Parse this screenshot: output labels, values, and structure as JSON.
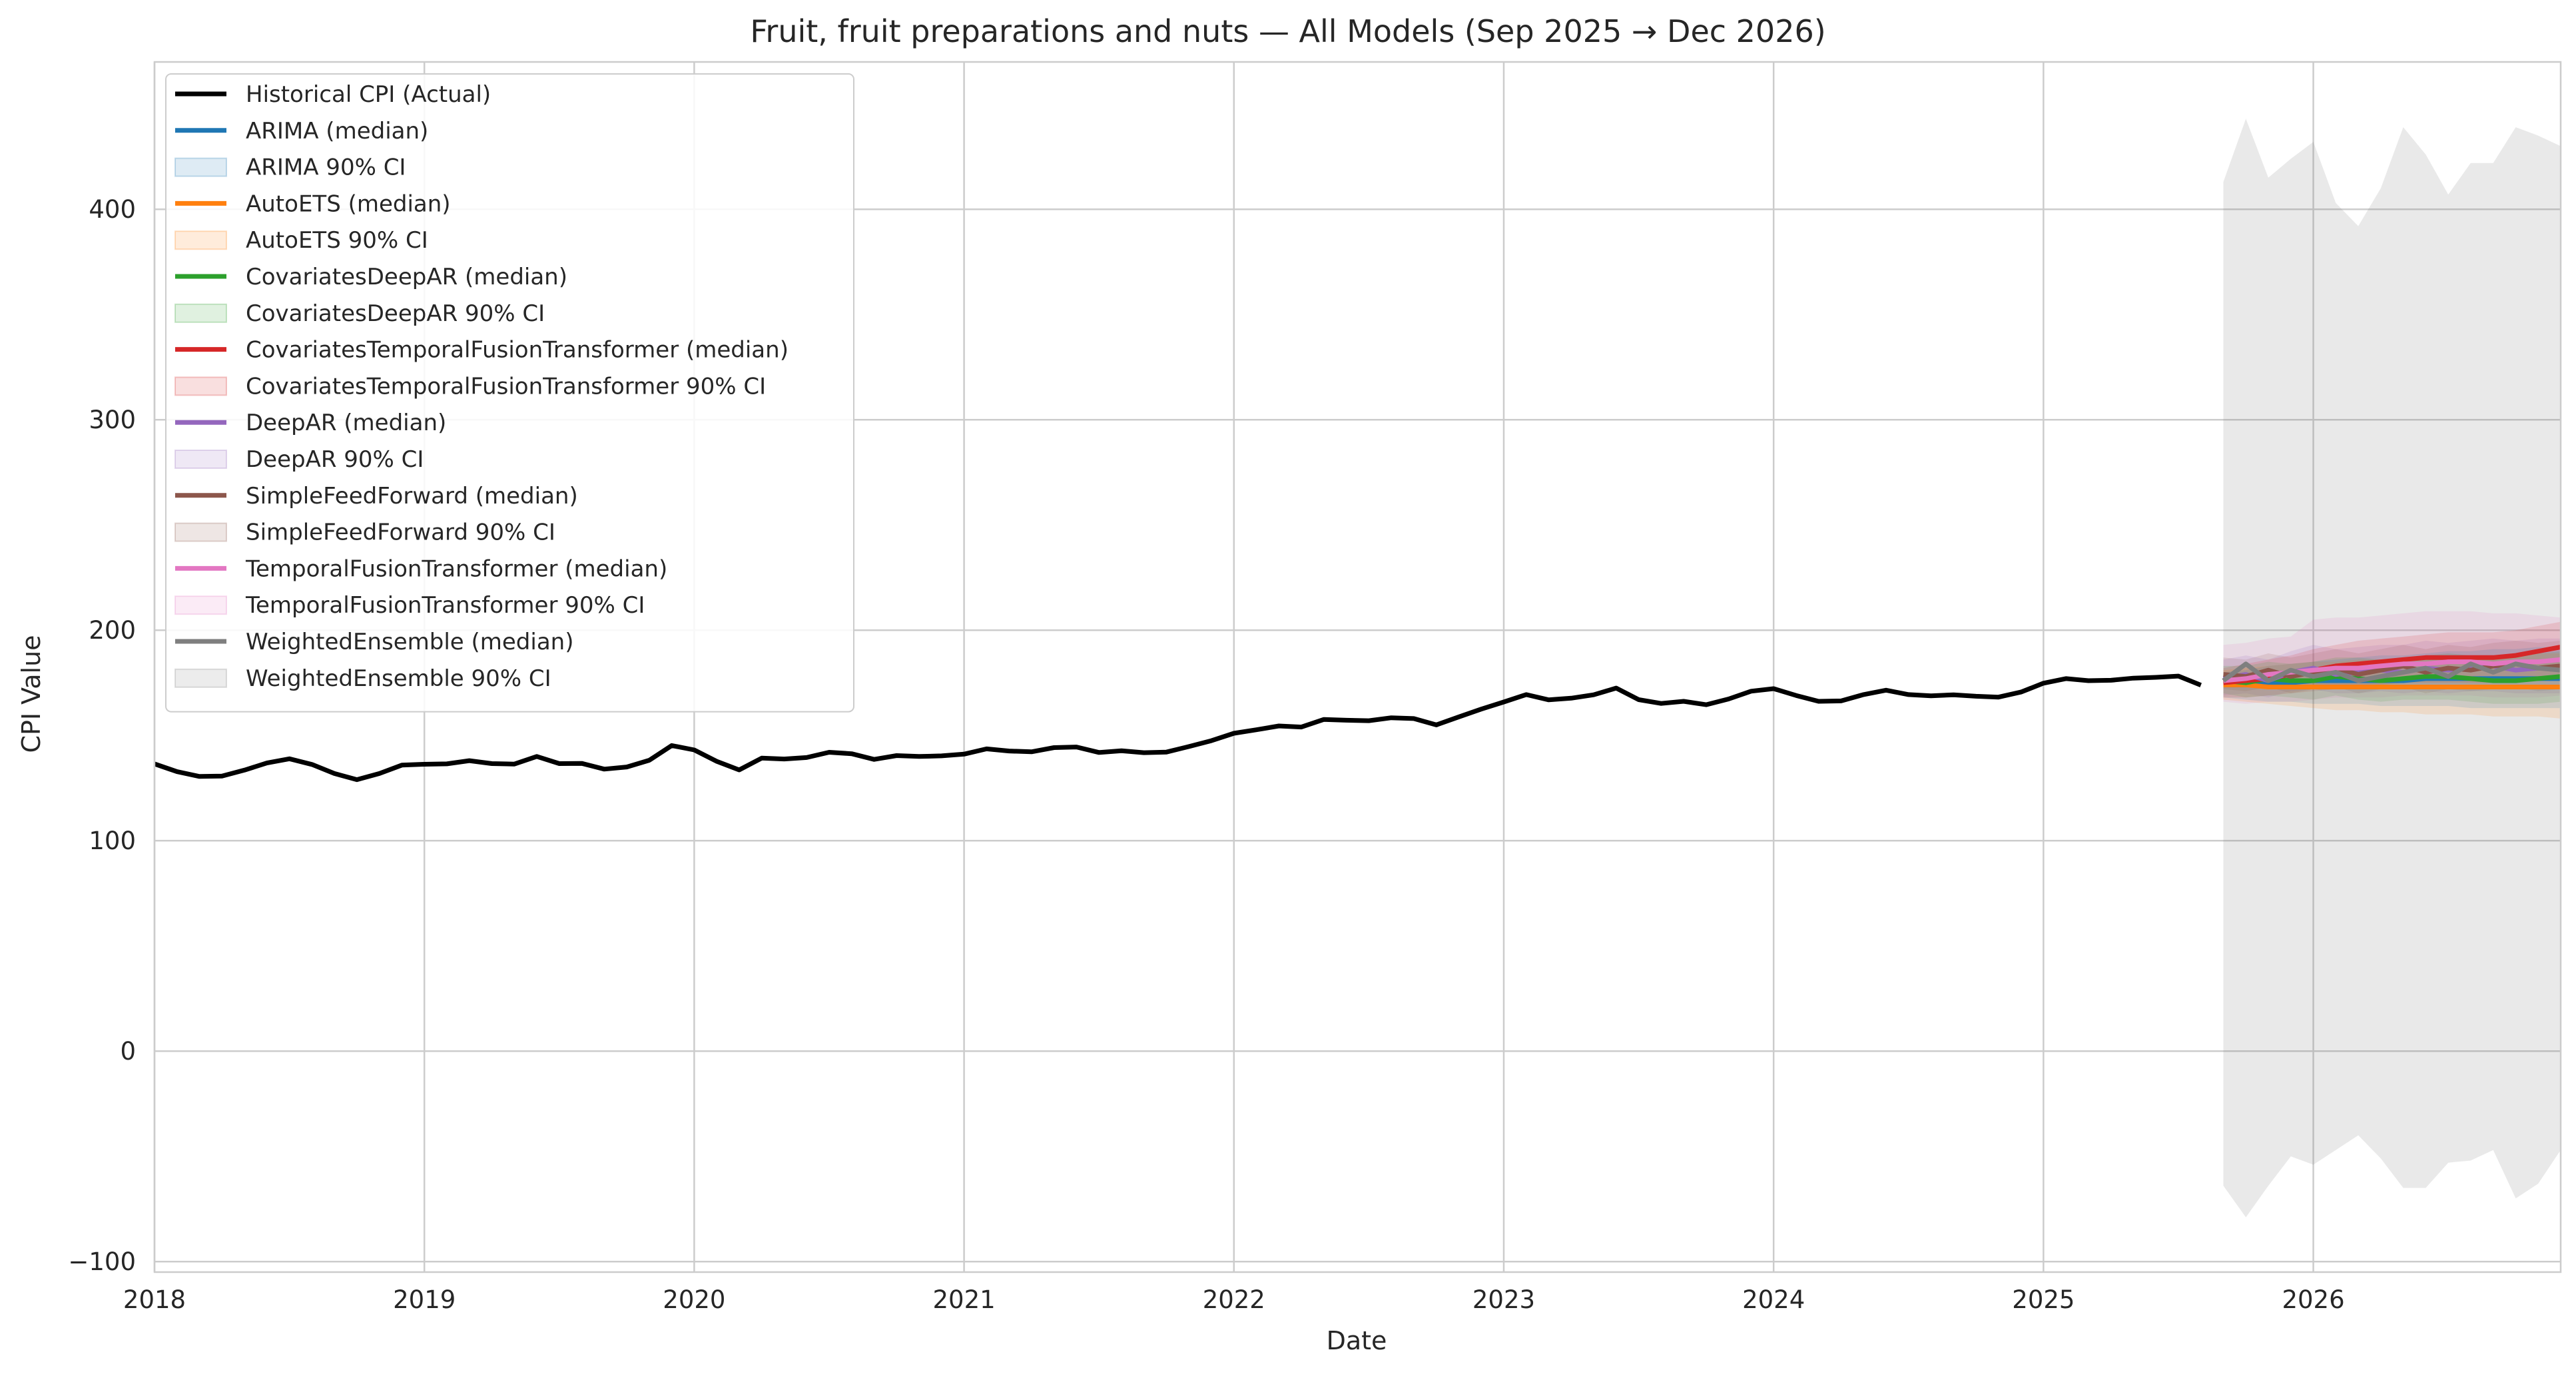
{
  "chart_data": {
    "type": "line",
    "title": "Fruit, fruit preparations and nuts — All Models (Sep 2025 → Dec 2026)",
    "xlabel": "Date",
    "ylabel": "CPI Value",
    "xlim": [
      "2018-01",
      "2026-12"
    ],
    "ylim": [
      -105,
      470
    ],
    "x_ticks": [
      "2018",
      "2019",
      "2020",
      "2021",
      "2022",
      "2023",
      "2024",
      "2025",
      "2026"
    ],
    "y_ticks": [
      "−100",
      "0",
      "100",
      "200",
      "300",
      "400"
    ],
    "grid": true,
    "legend_position": "top-left",
    "historical": {
      "name": "Historical CPI (Actual)",
      "color": "#000000",
      "start": "2018-01",
      "values": [
        136.5,
        132.8,
        130.5,
        130.7,
        133.5,
        136.9,
        138.9,
        136.2,
        131.9,
        129.0,
        131.9,
        135.9,
        136.3,
        136.5,
        138.0,
        136.6,
        136.4,
        140.0,
        136.6,
        136.7,
        134.0,
        135.0,
        138.2,
        145.2,
        143.1,
        137.7,
        133.6,
        139.2,
        138.8,
        139.5,
        142.0,
        141.3,
        138.6,
        140.4,
        140.0,
        140.3,
        141.1,
        143.6,
        142.6,
        142.2,
        144.2,
        144.5,
        141.9,
        142.7,
        141.8,
        142.1,
        144.7,
        147.5,
        151.0,
        152.7,
        154.5,
        154.0,
        157.6,
        157.2,
        157.0,
        158.4,
        158.0,
        155.0,
        158.8,
        162.5,
        165.9,
        169.4,
        166.9,
        167.7,
        169.3,
        172.5,
        167.0,
        165.2,
        166.2,
        164.6,
        167.3,
        171.0,
        172.2,
        169.0,
        166.2,
        166.4,
        169.4,
        171.5,
        169.4,
        168.8,
        169.3,
        168.6,
        168.2,
        170.6,
        174.8,
        177.0,
        176.0,
        176.2,
        177.2,
        177.6,
        178.2,
        173.9
      ]
    },
    "forecast_x": [
      "2025-09",
      "2025-10",
      "2025-11",
      "2025-12",
      "2026-01",
      "2026-02",
      "2026-03",
      "2026-04",
      "2026-05",
      "2026-06",
      "2026-07",
      "2026-08",
      "2026-09",
      "2026-10",
      "2026-11",
      "2026-12"
    ],
    "series": [
      {
        "name": "ARIMA (median)",
        "ci_name": "ARIMA 90% CI",
        "color": "#1f77b4",
        "median": [
          174,
          174,
          175,
          175,
          176,
          176,
          176,
          176,
          176,
          177,
          177,
          177,
          177,
          177,
          177,
          177
        ],
        "lower": [
          168,
          167,
          166,
          166,
          165,
          165,
          165,
          164,
          164,
          164,
          164,
          163,
          163,
          163,
          163,
          163
        ],
        "upper": [
          180,
          181,
          183,
          184,
          185,
          186,
          187,
          188,
          188,
          189,
          190,
          190,
          191,
          191,
          192,
          192
        ]
      },
      {
        "name": "AutoETS (median)",
        "ci_name": "AutoETS 90% CI",
        "color": "#ff7f0e",
        "median": [
          174,
          174,
          173,
          173,
          173,
          173,
          173,
          173,
          173,
          173,
          173,
          173,
          173,
          173,
          173,
          173
        ],
        "lower": [
          167,
          166,
          165,
          164,
          163,
          162,
          162,
          161,
          161,
          160,
          160,
          160,
          159,
          159,
          159,
          158
        ],
        "upper": [
          181,
          182,
          183,
          184,
          185,
          185,
          186,
          186,
          187,
          187,
          188,
          188,
          188,
          189,
          189,
          189
        ]
      },
      {
        "name": "CovariatesDeepAR (median)",
        "ci_name": "CovariatesDeepAR 90% CI",
        "color": "#2ca02c",
        "median": [
          176,
          175,
          177,
          176,
          176,
          178,
          177,
          176,
          177,
          178,
          178,
          177,
          176,
          176,
          177,
          178
        ],
        "lower": [
          170,
          168,
          169,
          168,
          167,
          169,
          167,
          166,
          167,
          167,
          167,
          166,
          165,
          165,
          165,
          166
        ],
        "upper": [
          183,
          183,
          185,
          184,
          185,
          187,
          187,
          186,
          187,
          188,
          189,
          188,
          188,
          188,
          189,
          190
        ]
      },
      {
        "name": "CovariatesTemporalFusionTransformer (median)",
        "ci_name": "CovariatesTemporalFusionTransformer 90% CI",
        "color": "#d62728",
        "median": [
          175,
          176,
          177,
          179,
          181,
          183,
          184,
          185,
          186,
          187,
          187,
          187,
          187,
          188,
          190,
          192
        ],
        "lower": [
          168,
          168,
          169,
          170,
          171,
          172,
          173,
          174,
          175,
          175,
          175,
          175,
          175,
          176,
          177,
          179
        ],
        "upper": [
          182,
          184,
          186,
          188,
          191,
          193,
          195,
          196,
          197,
          198,
          199,
          199,
          199,
          200,
          202,
          204
        ]
      },
      {
        "name": "DeepAR (median)",
        "ci_name": "DeepAR 90% CI",
        "color": "#9467bd",
        "median": [
          177,
          179,
          176,
          180,
          182,
          179,
          180,
          181,
          180,
          182,
          181,
          182,
          183,
          181,
          182,
          182
        ],
        "lower": [
          169,
          170,
          168,
          171,
          172,
          170,
          170,
          171,
          170,
          171,
          170,
          171,
          171,
          170,
          170,
          170
        ],
        "upper": [
          186,
          188,
          186,
          190,
          193,
          191,
          192,
          193,
          193,
          195,
          194,
          195,
          196,
          195,
          196,
          196
        ]
      },
      {
        "name": "SimpleFeedForward (median)",
        "ci_name": "SimpleFeedForward 90% CI",
        "color": "#8c564b",
        "median": [
          179,
          178,
          181,
          178,
          180,
          182,
          179,
          181,
          183,
          180,
          182,
          181,
          183,
          184,
          182,
          183
        ],
        "lower": [
          172,
          171,
          173,
          170,
          172,
          173,
          170,
          172,
          173,
          170,
          172,
          171,
          172,
          173,
          171,
          172
        ],
        "upper": [
          187,
          186,
          189,
          187,
          189,
          191,
          189,
          191,
          193,
          191,
          193,
          192,
          194,
          195,
          194,
          195
        ]
      },
      {
        "name": "TemporalFusionTransformer (median)",
        "ci_name": "TemporalFusionTransformer 90% CI",
        "color": "#e377c2",
        "median": [
          176,
          177,
          179,
          180,
          181,
          182,
          182,
          183,
          184,
          184,
          185,
          185,
          184,
          185,
          185,
          186
        ],
        "lower": [
          166,
          165,
          166,
          166,
          167,
          168,
          168,
          168,
          169,
          169,
          169,
          169,
          168,
          168,
          168,
          169
        ],
        "upper": [
          193,
          194,
          196,
          197,
          205,
          206,
          206,
          207,
          208,
          209,
          209,
          209,
          208,
          208,
          207,
          206
        ]
      },
      {
        "name": "WeightedEnsemble (median)",
        "ci_name": "WeightedEnsemble 90% CI",
        "color": "#7f7f7f",
        "median": [
          176,
          184,
          176,
          181,
          178,
          180,
          176,
          178,
          180,
          182,
          178,
          184,
          180,
          184,
          182,
          181
        ],
        "lower": [
          -64,
          -79,
          -64,
          -50,
          -54,
          -47,
          -40,
          -51,
          -65,
          -65,
          -53,
          -52,
          -47,
          -70,
          -63,
          -47
        ],
        "upper": [
          413,
          443,
          415,
          424,
          432,
          403,
          392,
          410,
          439,
          426,
          407,
          422,
          422,
          439,
          435,
          430
        ]
      }
    ]
  }
}
